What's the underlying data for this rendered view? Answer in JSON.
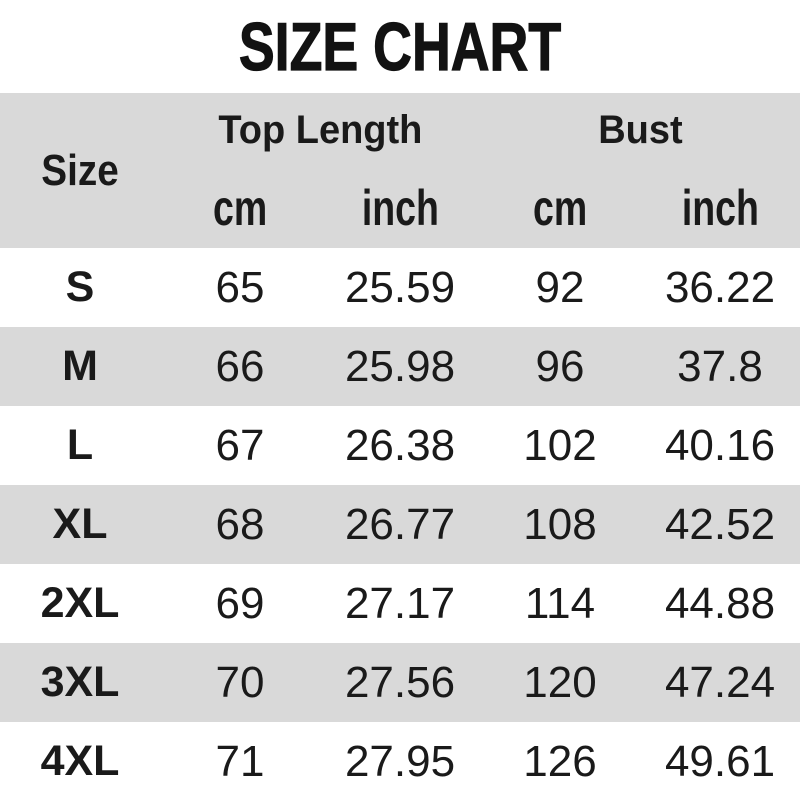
{
  "title": "SIZE CHART",
  "colors": {
    "band_gray": "#d9d9d9",
    "text": "#1a1a1a",
    "background": "#ffffff"
  },
  "table": {
    "size_header": "Size",
    "groups": [
      {
        "label": "Top Length",
        "units": [
          "cm",
          "inch"
        ]
      },
      {
        "label": "Bust",
        "units": [
          "cm",
          "inch"
        ]
      }
    ],
    "rows": [
      {
        "size": "S",
        "values": [
          "65",
          "25.59",
          "92",
          "36.22"
        ]
      },
      {
        "size": "M",
        "values": [
          "66",
          "25.98",
          "96",
          "37.8"
        ]
      },
      {
        "size": "L",
        "values": [
          "67",
          "26.38",
          "102",
          "40.16"
        ]
      },
      {
        "size": "XL",
        "values": [
          "68",
          "26.77",
          "108",
          "42.52"
        ]
      },
      {
        "size": "2XL",
        "values": [
          "69",
          "27.17",
          "114",
          "44.88"
        ]
      },
      {
        "size": "3XL",
        "values": [
          "70",
          "27.56",
          "120",
          "47.24"
        ]
      },
      {
        "size": "4XL",
        "values": [
          "71",
          "27.95",
          "126",
          "49.61"
        ]
      }
    ]
  },
  "chart_data": {
    "type": "table",
    "title": "SIZE CHART",
    "columns": [
      "Size",
      "Top Length (cm)",
      "Top Length (inch)",
      "Bust (cm)",
      "Bust (inch)"
    ],
    "rows": [
      [
        "S",
        65,
        25.59,
        92,
        36.22
      ],
      [
        "M",
        66,
        25.98,
        96,
        37.8
      ],
      [
        "L",
        67,
        26.38,
        102,
        40.16
      ],
      [
        "XL",
        68,
        26.77,
        108,
        42.52
      ],
      [
        "2XL",
        69,
        27.17,
        114,
        44.88
      ],
      [
        "3XL",
        70,
        27.56,
        120,
        47.24
      ],
      [
        "4XL",
        71,
        27.95,
        126,
        49.61
      ]
    ],
    "layout": {
      "header_band": "gray",
      "zebra_rows": true,
      "grid": false
    }
  }
}
